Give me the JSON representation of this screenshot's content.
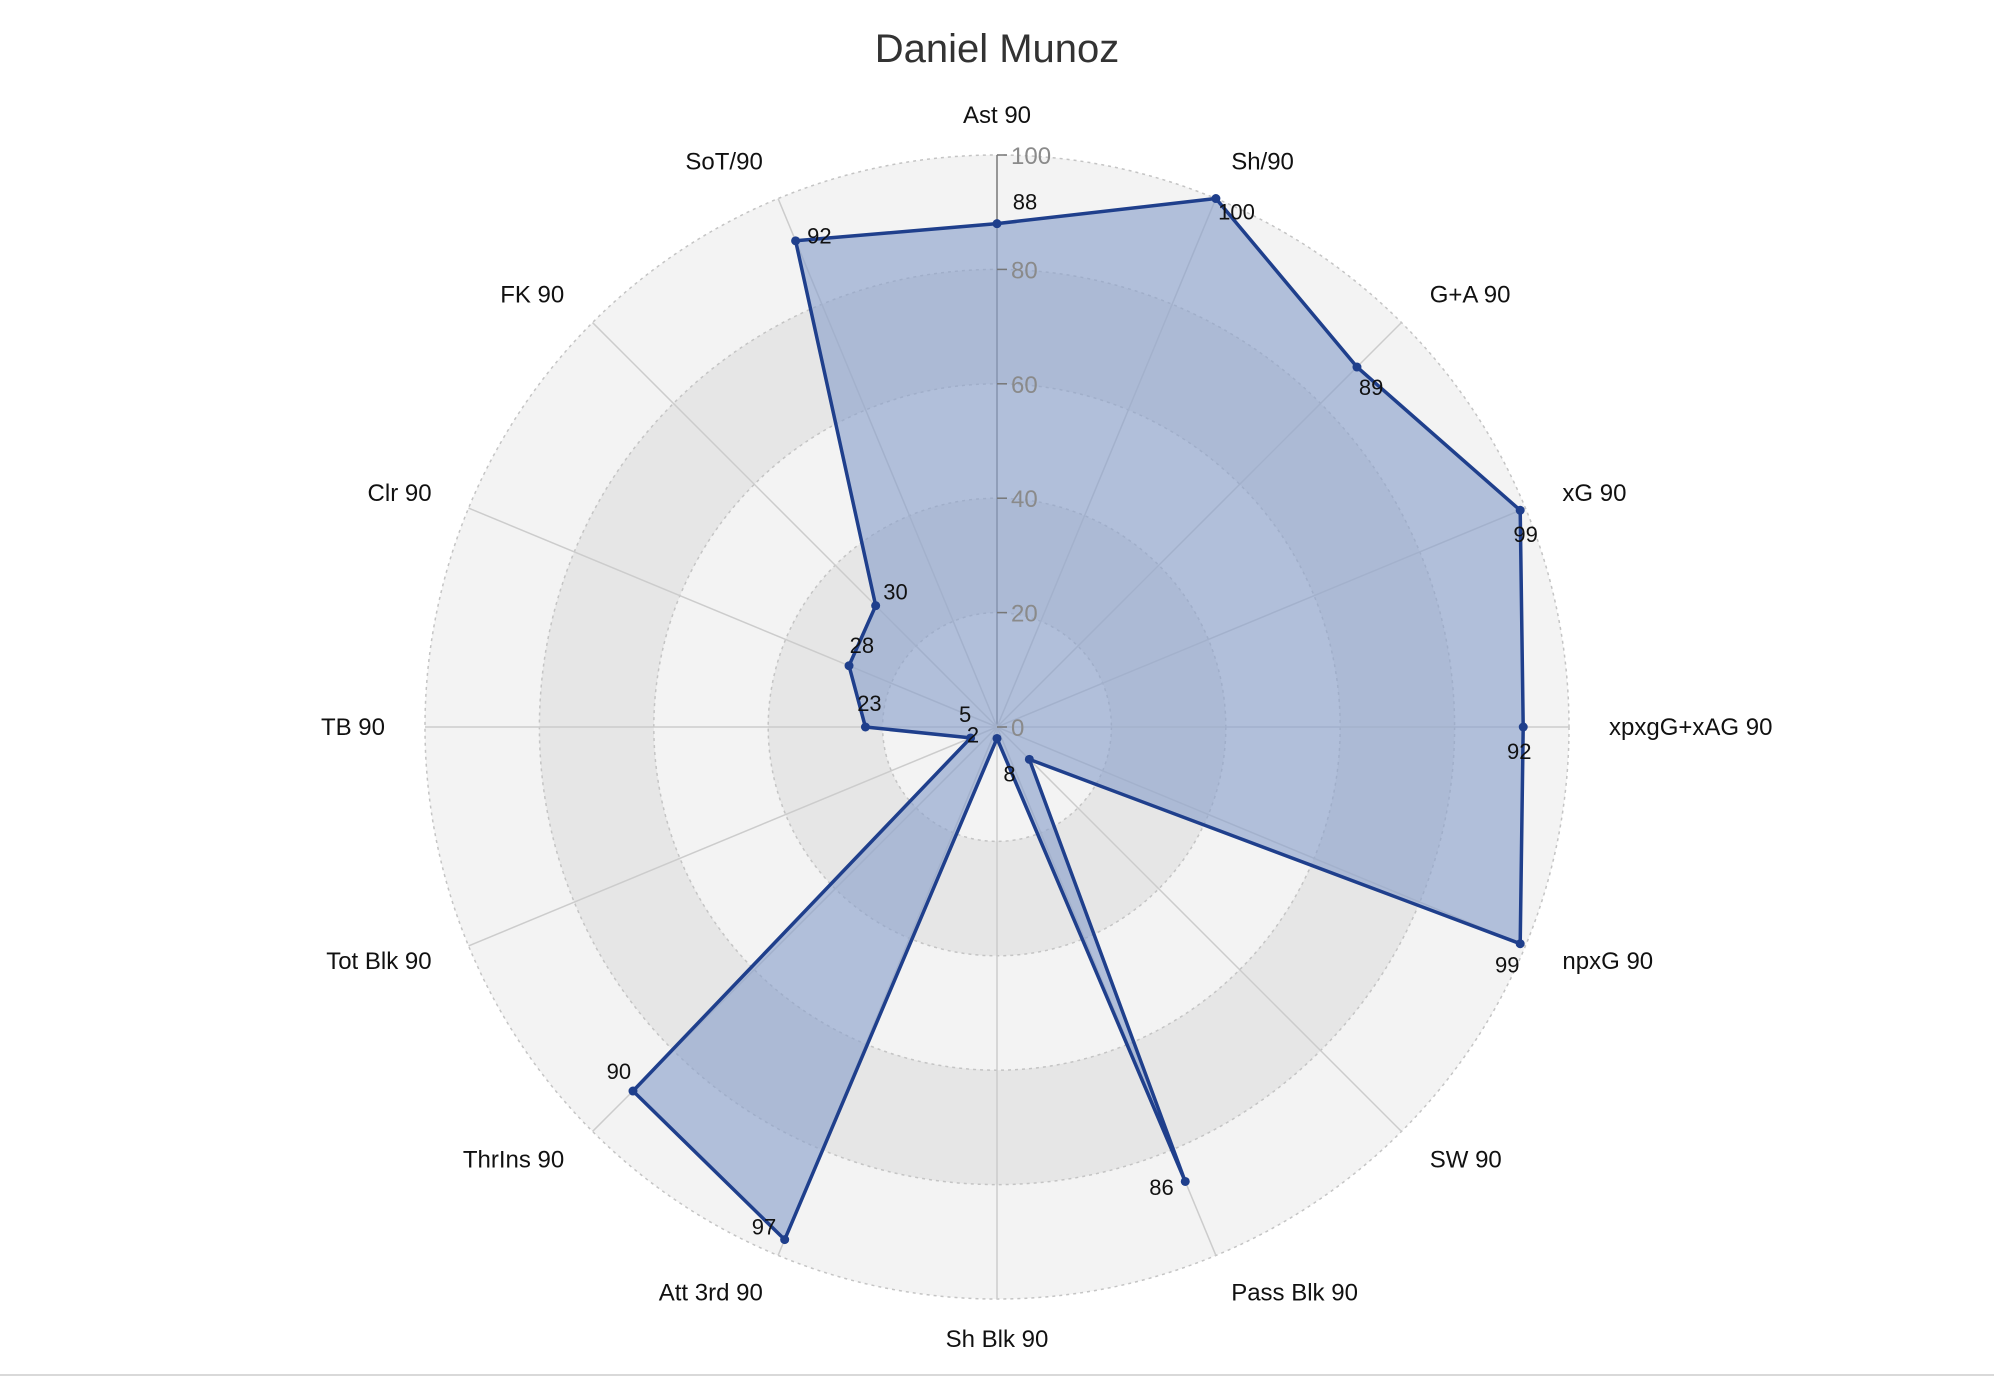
{
  "chart_data": {
    "type": "radar",
    "title": "Daniel Munoz",
    "categories": [
      "Ast 90",
      "Sh/90",
      "G+A 90",
      "xG 90",
      "xpxgG+xAG 90",
      "npxG 90",
      "SW 90",
      "Pass Blk 90",
      "Sh Blk 90",
      "Att 3rd 90",
      "ThrIns 90",
      "Tot Blk 90",
      "TB 90",
      "Clr 90",
      "FK 90",
      "SoT/90"
    ],
    "values": [
      88,
      100,
      89,
      99,
      92,
      99,
      8,
      86,
      2,
      97,
      90,
      5,
      23,
      28,
      30,
      92
    ],
    "radial_ticks": [
      0,
      20,
      40,
      60,
      80,
      100
    ],
    "range": [
      0,
      100
    ],
    "grid": true,
    "legend": "none",
    "colors": {
      "line": "#1f3f8c",
      "fill": "#8ea3cc",
      "band_dark": "#e6e6e6",
      "band_light": "#f3f3f3",
      "spoke": "#cccccc",
      "tick_text": "#8a8a8a"
    }
  }
}
